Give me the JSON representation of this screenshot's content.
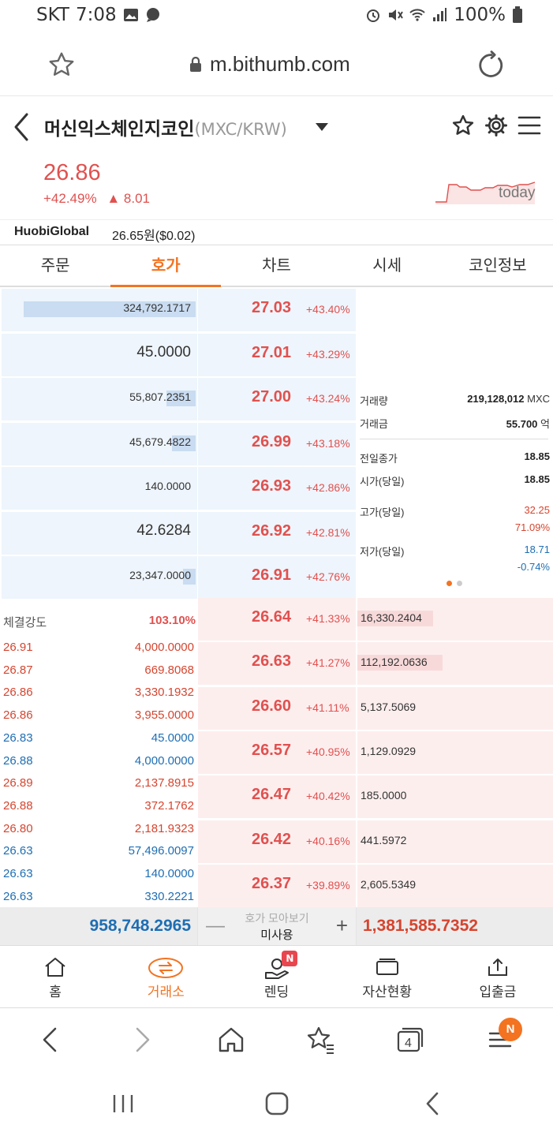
{
  "status_bar": {
    "carrier": "SKT",
    "time": "7:08",
    "battery": "100%"
  },
  "browser": {
    "url": "m.bithumb.com"
  },
  "header": {
    "coin_name": "머신익스체인지코인",
    "pair": "(MXC/KRW)"
  },
  "price": {
    "current": "26.86",
    "change_pct": "+42.49%",
    "change_amt": "8.01",
    "chart_label": "today"
  },
  "reference": {
    "exchange": "HuobiGlobal",
    "value": "26.65원($0.02)"
  },
  "tabs": [
    {
      "label": "주문"
    },
    {
      "label": "호가"
    },
    {
      "label": "차트"
    },
    {
      "label": "시세"
    },
    {
      "label": "코인정보"
    }
  ],
  "asks": [
    {
      "qty": "324,792.1717",
      "price": "27.03",
      "pct": "+43.40%",
      "fill": 0.94,
      "big": false
    },
    {
      "qty": "45.0000",
      "price": "27.01",
      "pct": "+43.29%",
      "fill": 0.0,
      "big": true
    },
    {
      "qty": "55,807.2351",
      "price": "27.00",
      "pct": "+43.24%",
      "fill": 0.16,
      "big": false
    },
    {
      "qty": "45,679.4822",
      "price": "26.99",
      "pct": "+43.18%",
      "fill": 0.13,
      "big": false
    },
    {
      "qty": "140.0000",
      "price": "26.93",
      "pct": "+42.86%",
      "fill": 0.0,
      "big": false
    },
    {
      "qty": "42.6284",
      "price": "26.92",
      "pct": "+42.81%",
      "fill": 0.0,
      "big": true
    },
    {
      "qty": "23,347.0000",
      "price": "26.91",
      "pct": "+42.76%",
      "fill": 0.07,
      "big": false
    }
  ],
  "info": {
    "volume_label": "거래량",
    "volume": "219,128,012",
    "volume_unit": "MXC",
    "amount_label": "거래금",
    "amount": "55.700",
    "amount_unit": "억",
    "prev_close_label": "전일종가",
    "prev_close": "18.85",
    "open_label": "시가(당일)",
    "open": "18.85",
    "high_label": "고가(당일)",
    "high": "32.25",
    "high_pct": "71.09%",
    "low_label": "저가(당일)",
    "low": "18.71",
    "low_pct": "-0.74%"
  },
  "bids": [
    {
      "price": "26.64",
      "pct": "+41.33%",
      "qty": "16,330.2404",
      "fill": 0.4
    },
    {
      "price": "26.63",
      "pct": "+41.27%",
      "qty": "112,192.0636",
      "fill": 0.45
    },
    {
      "price": "26.60",
      "pct": "+41.11%",
      "qty": "5,137.5069",
      "fill": 0.0
    },
    {
      "price": "26.57",
      "pct": "+40.95%",
      "qty": "1,129.0929",
      "fill": 0.0
    },
    {
      "price": "26.47",
      "pct": "+40.42%",
      "qty": "185.0000",
      "fill": 0.0
    },
    {
      "price": "26.42",
      "pct": "+40.16%",
      "qty": "441.5972",
      "fill": 0.0
    },
    {
      "price": "26.37",
      "pct": "+39.89%",
      "qty": "2,605.5349",
      "fill": 0.0
    }
  ],
  "strength": {
    "label": "체결강도",
    "value": "103.10%"
  },
  "trades": [
    {
      "price": "26.91",
      "qty": "4,000.0000",
      "side": "up"
    },
    {
      "price": "26.87",
      "qty": "669.8068",
      "side": "up"
    },
    {
      "price": "26.86",
      "qty": "3,330.1932",
      "side": "up"
    },
    {
      "price": "26.86",
      "qty": "3,955.0000",
      "side": "up"
    },
    {
      "price": "26.83",
      "qty": "45.0000",
      "side": "down"
    },
    {
      "price": "26.88",
      "qty": "4,000.0000",
      "side": "down"
    },
    {
      "price": "26.89",
      "qty": "2,137.8915",
      "side": "up"
    },
    {
      "price": "26.88",
      "qty": "372.1762",
      "side": "up"
    },
    {
      "price": "26.80",
      "qty": "2,181.9323",
      "side": "up"
    },
    {
      "price": "26.63",
      "qty": "57,496.0097",
      "side": "down"
    },
    {
      "price": "26.63",
      "qty": "140.0000",
      "side": "down"
    },
    {
      "price": "26.63",
      "qty": "330.2221",
      "side": "down"
    }
  ],
  "totals": {
    "ask_total": "958,748.2965",
    "mid_label": "호가 모아보기",
    "mid_value": "미사용",
    "bid_total": "1,381,585.7352"
  },
  "bottom_nav": [
    {
      "label": "홈"
    },
    {
      "label": "거래소"
    },
    {
      "label": "렌딩",
      "badge": "N"
    },
    {
      "label": "자산현황"
    },
    {
      "label": "입출금"
    }
  ],
  "browser_bar": {
    "tabs_count": "4",
    "menu_badge": "N"
  },
  "colors": {
    "accent": "#f37321",
    "up": "#e0514f",
    "down": "#1e6eb3"
  }
}
